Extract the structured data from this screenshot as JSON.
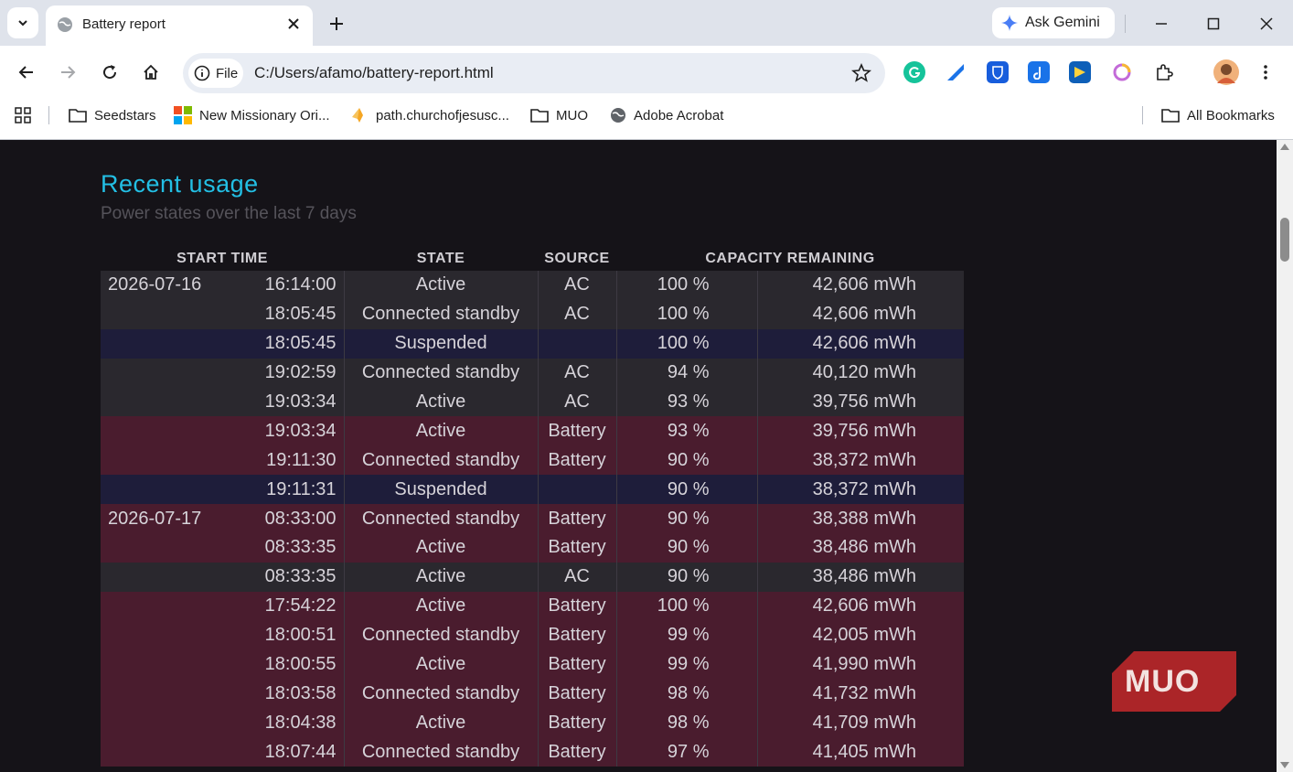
{
  "browser": {
    "tab_title": "Battery report",
    "gemini_label": "Ask Gemini",
    "chip_label": "File",
    "url": "C:/Users/afamo/battery-report.html"
  },
  "bookmarks": {
    "items": [
      {
        "label": "Seedstars",
        "icon": "folder-icon"
      },
      {
        "label": "New Missionary Ori...",
        "icon": "windows-logo-icon"
      },
      {
        "label": "path.churchofjesusc...",
        "icon": "church-logo-icon"
      },
      {
        "label": "MUO",
        "icon": "folder-icon"
      },
      {
        "label": "Adobe Acrobat",
        "icon": "globe-icon"
      }
    ],
    "all_label": "All Bookmarks"
  },
  "report": {
    "title": "Recent usage",
    "subtitle": "Power states over the last 7 days",
    "headers": {
      "start": "START TIME",
      "state": "STATE",
      "source": "SOURCE",
      "capacity": "CAPACITY REMAINING"
    },
    "rows": [
      {
        "date": "2026-07-16",
        "time": "16:14:00",
        "state": "Active",
        "source": "AC",
        "pct": "100 %",
        "cap": "42,606 mWh"
      },
      {
        "date": "",
        "time": "18:05:45",
        "state": "Connected standby",
        "source": "AC",
        "pct": "100 %",
        "cap": "42,606 mWh"
      },
      {
        "date": "",
        "time": "18:05:45",
        "state": "Suspended",
        "source": "",
        "pct": "100 %",
        "cap": "42,606 mWh"
      },
      {
        "date": "",
        "time": "19:02:59",
        "state": "Connected standby",
        "source": "AC",
        "pct": "94 %",
        "cap": "40,120 mWh"
      },
      {
        "date": "",
        "time": "19:03:34",
        "state": "Active",
        "source": "AC",
        "pct": "93 %",
        "cap": "39,756 mWh"
      },
      {
        "date": "",
        "time": "19:03:34",
        "state": "Active",
        "source": "Battery",
        "pct": "93 %",
        "cap": "39,756 mWh"
      },
      {
        "date": "",
        "time": "19:11:30",
        "state": "Connected standby",
        "source": "Battery",
        "pct": "90 %",
        "cap": "38,372 mWh"
      },
      {
        "date": "",
        "time": "19:11:31",
        "state": "Suspended",
        "source": "",
        "pct": "90 %",
        "cap": "38,372 mWh"
      },
      {
        "date": "2026-07-17",
        "time": "08:33:00",
        "state": "Connected standby",
        "source": "Battery",
        "pct": "90 %",
        "cap": "38,388 mWh"
      },
      {
        "date": "",
        "time": "08:33:35",
        "state": "Active",
        "source": "Battery",
        "pct": "90 %",
        "cap": "38,486 mWh"
      },
      {
        "date": "",
        "time": "08:33:35",
        "state": "Active",
        "source": "AC",
        "pct": "90 %",
        "cap": "38,486 mWh"
      },
      {
        "date": "",
        "time": "17:54:22",
        "state": "Active",
        "source": "Battery",
        "pct": "100 %",
        "cap": "42,606 mWh"
      },
      {
        "date": "",
        "time": "18:00:51",
        "state": "Connected standby",
        "source": "Battery",
        "pct": "99 %",
        "cap": "42,005 mWh"
      },
      {
        "date": "",
        "time": "18:00:55",
        "state": "Active",
        "source": "Battery",
        "pct": "99 %",
        "cap": "41,990 mWh"
      },
      {
        "date": "",
        "time": "18:03:58",
        "state": "Connected standby",
        "source": "Battery",
        "pct": "98 %",
        "cap": "41,732 mWh"
      },
      {
        "date": "",
        "time": "18:04:38",
        "state": "Active",
        "source": "Battery",
        "pct": "98 %",
        "cap": "41,709 mWh"
      },
      {
        "date": "",
        "time": "18:07:44",
        "state": "Connected standby",
        "source": "Battery",
        "pct": "97 %",
        "cap": "41,405 mWh"
      }
    ]
  },
  "watermark": {
    "text": "MUO"
  },
  "colors": {
    "heading": "#23bfe4",
    "row_ac": "#2a282e",
    "row_battery": "#4a1c2e",
    "row_suspended": "#1e1d3a"
  }
}
